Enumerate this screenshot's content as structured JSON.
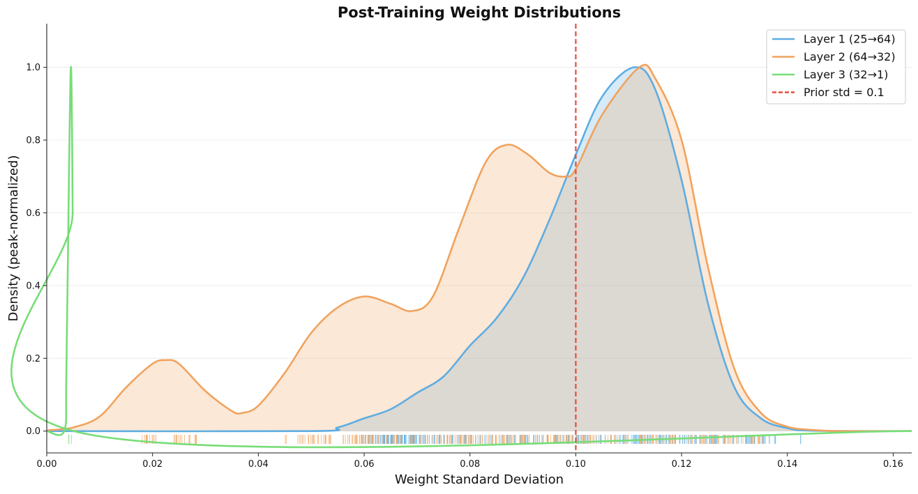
{
  "chart_data": {
    "type": "area",
    "title": "Post-Training Weight Distributions",
    "xlabel": "Weight Standard Deviation",
    "ylabel": "Density (peak-normalized)",
    "xlim": [
      0.0,
      0.1635
    ],
    "ylim": [
      -0.06,
      1.12
    ],
    "xticks": [
      "0.00",
      "0.02",
      "0.04",
      "0.06",
      "0.08",
      "0.10",
      "0.12",
      "0.14",
      "0.16"
    ],
    "yticks": [
      "0.0",
      "0.2",
      "0.4",
      "0.6",
      "0.8",
      "1.0"
    ],
    "grid": "horizontal",
    "legend_position": "top-right",
    "series": [
      {
        "name": "Layer 1 (25→64)",
        "color": "#5dade2",
        "fill": "#5dade2",
        "points": [
          [
            0.0,
            0.0
          ],
          [
            0.05,
            0.0
          ],
          [
            0.055,
            0.01
          ],
          [
            0.06,
            0.035
          ],
          [
            0.065,
            0.06
          ],
          [
            0.07,
            0.105
          ],
          [
            0.075,
            0.15
          ],
          [
            0.08,
            0.235
          ],
          [
            0.085,
            0.31
          ],
          [
            0.09,
            0.42
          ],
          [
            0.095,
            0.58
          ],
          [
            0.1,
            0.76
          ],
          [
            0.105,
            0.92
          ],
          [
            0.111,
            1.0
          ],
          [
            0.115,
            0.94
          ],
          [
            0.12,
            0.69
          ],
          [
            0.125,
            0.35
          ],
          [
            0.13,
            0.12
          ],
          [
            0.135,
            0.035
          ],
          [
            0.14,
            0.008
          ],
          [
            0.145,
            0.001
          ],
          [
            0.1635,
            0.0
          ]
        ],
        "rug": [
          [
            0.059,
            0.07
          ],
          [
            0.062,
            0.0695
          ],
          [
            0.067,
            0.094
          ],
          [
            0.095,
            0.137
          ],
          [
            0.1375,
            0.1385
          ],
          [
            0.1425,
            0.1425
          ]
        ]
      },
      {
        "name": "Layer 2 (64→32)",
        "color": "#f0a35e",
        "fill": "#f0a35e",
        "points": [
          [
            0.0,
            0.002
          ],
          [
            0.005,
            0.01
          ],
          [
            0.01,
            0.04
          ],
          [
            0.015,
            0.12
          ],
          [
            0.02,
            0.185
          ],
          [
            0.0225,
            0.195
          ],
          [
            0.025,
            0.185
          ],
          [
            0.03,
            0.11
          ],
          [
            0.035,
            0.055
          ],
          [
            0.037,
            0.05
          ],
          [
            0.04,
            0.07
          ],
          [
            0.045,
            0.16
          ],
          [
            0.05,
            0.27
          ],
          [
            0.055,
            0.34
          ],
          [
            0.06,
            0.37
          ],
          [
            0.065,
            0.35
          ],
          [
            0.069,
            0.33
          ],
          [
            0.073,
            0.37
          ],
          [
            0.078,
            0.56
          ],
          [
            0.083,
            0.74
          ],
          [
            0.087,
            0.787
          ],
          [
            0.091,
            0.76
          ],
          [
            0.095,
            0.71
          ],
          [
            0.098,
            0.7
          ],
          [
            0.1,
            0.72
          ],
          [
            0.105,
            0.87
          ],
          [
            0.112,
            1.0
          ],
          [
            0.115,
            0.97
          ],
          [
            0.12,
            0.8
          ],
          [
            0.125,
            0.45
          ],
          [
            0.13,
            0.17
          ],
          [
            0.135,
            0.05
          ],
          [
            0.14,
            0.012
          ],
          [
            0.145,
            0.003
          ],
          [
            0.15,
            0.0
          ],
          [
            0.1635,
            0.0
          ]
        ],
        "rug": [
          [
            0.017,
            0.021
          ],
          [
            0.0235,
            0.0285
          ],
          [
            0.045,
            0.0455
          ],
          [
            0.047,
            0.0545
          ],
          [
            0.056,
            0.078
          ],
          [
            0.078,
            0.127
          ],
          [
            0.128,
            0.1355
          ]
        ]
      },
      {
        "name": "Layer 3 (32→1)",
        "color": "#77dd77",
        "fill": "none",
        "points": [
          [
            0.0,
            0.0
          ],
          [
            0.0033,
            0.0
          ],
          [
            0.0037,
            0.15
          ],
          [
            0.0042,
            0.7
          ],
          [
            0.0046,
            1.0
          ],
          [
            0.0049,
            0.6
          ],
          [
            0.0051,
            0.0
          ],
          [
            0.1635,
            0.0
          ]
        ],
        "rug": [
          [
            0.0038,
            0.0047
          ]
        ]
      }
    ],
    "reference_line": {
      "name": "Prior std = 0.1",
      "x": 0.1,
      "color": "#e74c3c"
    }
  }
}
